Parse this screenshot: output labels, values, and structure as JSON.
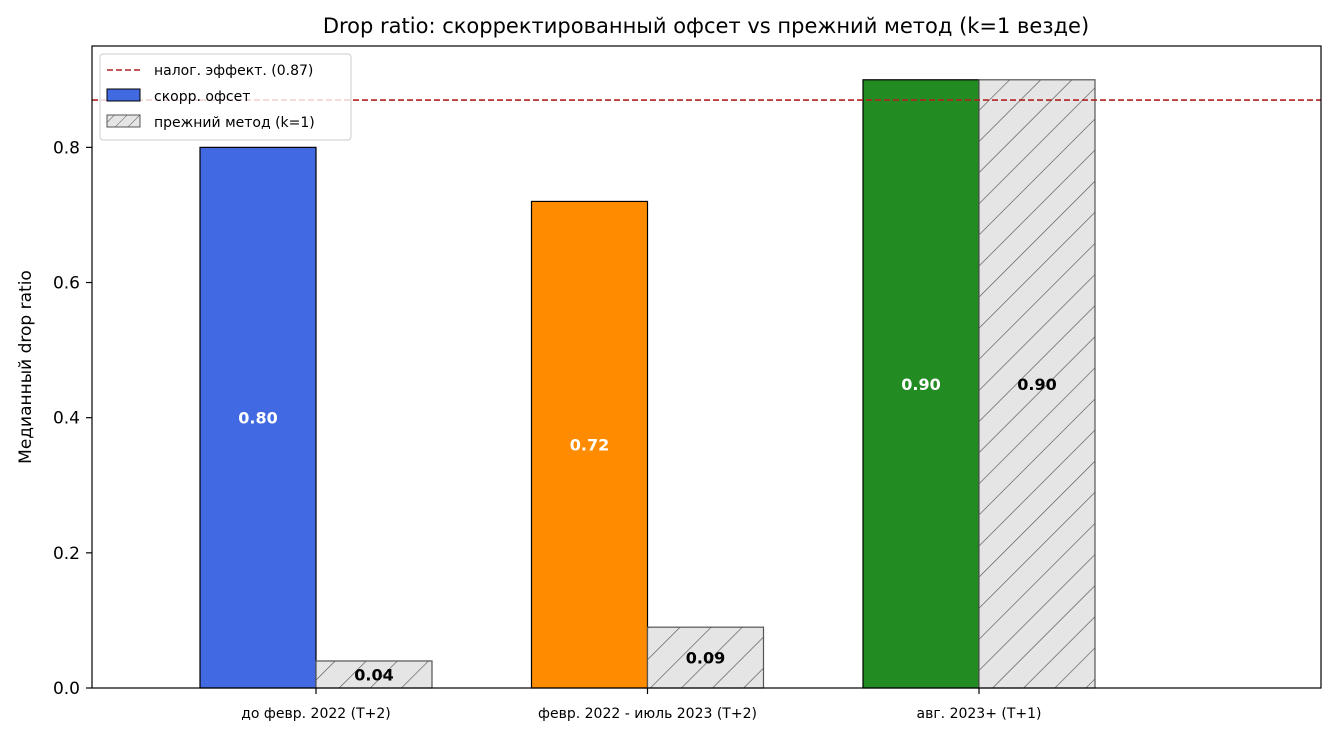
{
  "chart_data": {
    "type": "bar",
    "title": "Drop ratio: скорректированный офсет vs прежний метод (k=1 везде)",
    "xlabel": "",
    "ylabel": "Медианный drop ratio",
    "ylim": [
      0.0,
      0.95
    ],
    "yticks": [
      "0.0",
      "0.2",
      "0.4",
      "0.6",
      "0.8"
    ],
    "categories": [
      "до февр. 2022 (T+2)",
      "февр. 2022 - июль 2023 (T+2)",
      "авг. 2023+ (T+1)"
    ],
    "series": [
      {
        "name": "скорр. офсет",
        "values": [
          0.8,
          0.72,
          0.9
        ],
        "labels": [
          "0.80",
          "0.72",
          "0.90"
        ],
        "colors": [
          "#4169e1",
          "#ff8c00",
          "#228b22"
        ]
      },
      {
        "name": "прежний метод (k=1)",
        "values": [
          0.04,
          0.09,
          0.9
        ],
        "labels": [
          "0.04",
          "0.09",
          "0.90"
        ],
        "colors": [
          "#e5e5e5",
          "#e5e5e5",
          "#e5e5e5"
        ]
      }
    ],
    "reference_line": {
      "label": "налог. эффект. (0.87)",
      "value": 0.87,
      "color": "#b22222"
    },
    "legend_position": "top-left",
    "legend_swatch_color": "#4169e1",
    "grid": false
  }
}
